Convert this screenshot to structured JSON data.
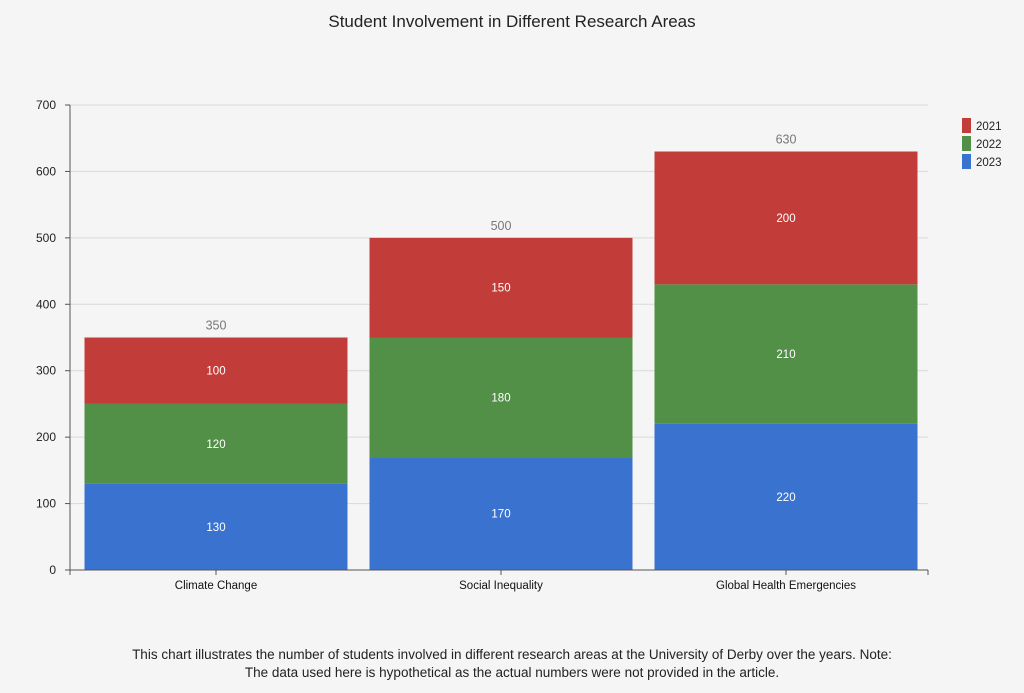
{
  "chart_data": {
    "type": "bar",
    "stacked": true,
    "title": "Student Involvement in Different Research Areas",
    "xlabel": "",
    "ylabel": "",
    "categories": [
      "Climate Change",
      "Social Inequality",
      "Global Health Emergencies"
    ],
    "series": [
      {
        "name": "2023",
        "color": "#3a72d0",
        "values": [
          130,
          170,
          220
        ]
      },
      {
        "name": "2022",
        "color": "#528f47",
        "values": [
          120,
          180,
          210
        ]
      },
      {
        "name": "2021",
        "color": "#c23d39",
        "values": [
          100,
          150,
          200
        ]
      }
    ],
    "totals": [
      350,
      500,
      630
    ],
    "ylim": [
      0,
      700
    ],
    "yticks": [
      0,
      100,
      200,
      300,
      400,
      500,
      600,
      700
    ],
    "grid": true,
    "legend": {
      "position": "top-right",
      "entries": [
        {
          "name": "2021",
          "color": "#c23d39"
        },
        {
          "name": "2022",
          "color": "#528f47"
        },
        {
          "name": "2023",
          "color": "#3a72d0"
        }
      ]
    }
  },
  "caption": {
    "line1": "This chart illustrates the number of students involved in different research areas at the University of Derby over the years. Note:",
    "line2": "The data used here is hypothetical as the actual numbers were not provided in the article."
  }
}
